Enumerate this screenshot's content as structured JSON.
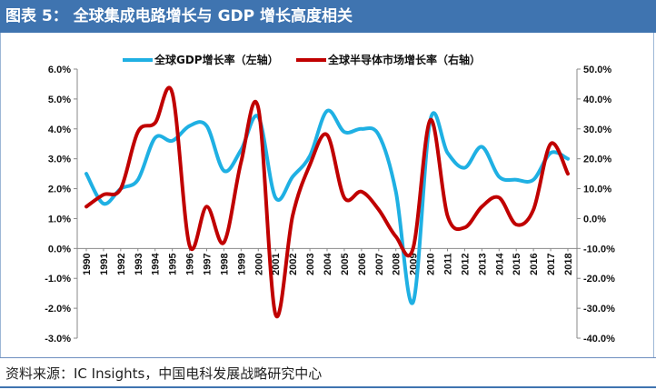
{
  "header": {
    "title": "图表 5： 全球集成电路增长与 GDP 增长高度相关"
  },
  "footer": {
    "source": "资料来源：IC Insights，中国电科发展战略研究中心"
  },
  "colors": {
    "header_bg": "#3f74b0",
    "gdp": "#1fb0e3",
    "semi": "#c00000"
  },
  "chart_data": {
    "type": "line",
    "title": "",
    "x": [
      "1990",
      "1991",
      "1992",
      "1993",
      "1994",
      "1995",
      "1996",
      "1997",
      "1998",
      "1999",
      "2000",
      "2001",
      "2002",
      "2003",
      "2004",
      "2005",
      "2006",
      "2007",
      "2008",
      "2009",
      "2010",
      "2011",
      "2012",
      "2013",
      "2014",
      "2015",
      "2016",
      "2017",
      "2018"
    ],
    "left_axis": {
      "ticks": [
        "6.0%",
        "5.0%",
        "4.0%",
        "3.0%",
        "2.0%",
        "1.0%",
        "0.0%",
        "-1.0%",
        "-2.0%",
        "-3.0%"
      ],
      "ylim": [
        -3,
        6
      ]
    },
    "right_axis": {
      "ticks": [
        "50.0%",
        "40.0%",
        "30.0%",
        "20.0%",
        "10.0%",
        "0.0%",
        "-10.0%",
        "-20.0%",
        "-30.0%",
        "-40.0%"
      ],
      "ylim": [
        -40,
        50
      ]
    },
    "series": [
      {
        "name": "全球GDP增长率（左轴）",
        "axis": "left",
        "color": "#1fb0e3",
        "values": [
          2.5,
          1.5,
          2.0,
          2.3,
          3.7,
          3.6,
          4.1,
          4.1,
          2.6,
          3.3,
          4.4,
          1.7,
          2.4,
          3.1,
          4.6,
          3.9,
          4.0,
          3.8,
          1.9,
          -1.8,
          4.3,
          3.2,
          2.7,
          3.4,
          2.4,
          2.3,
          2.3,
          3.2,
          3.0
        ]
      },
      {
        "name": "全球半导体市场增长率（右轴）",
        "axis": "right",
        "color": "#c00000",
        "values": [
          4,
          8,
          10,
          29,
          32,
          42,
          -9,
          4,
          -8,
          19,
          37,
          -32,
          1,
          18,
          28,
          7,
          9,
          3,
          -6,
          -10,
          33,
          1,
          -3,
          4,
          7,
          -2,
          3,
          25,
          15
        ]
      }
    ],
    "legend": "top-center",
    "grid": false
  }
}
